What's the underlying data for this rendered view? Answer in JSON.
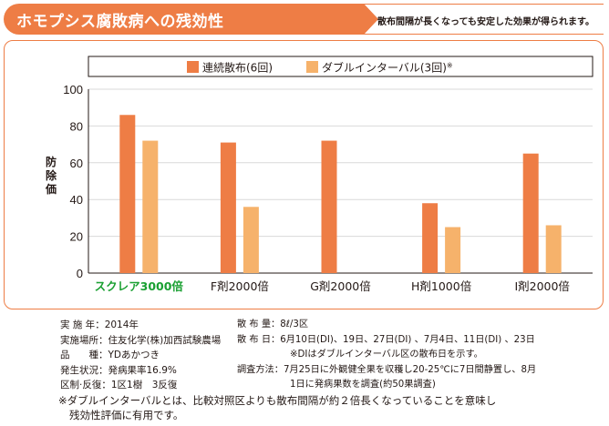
{
  "header": {
    "title": "ホモプシス腐敗病への残効性",
    "subtitle": "散布間隔が長くなっても安定した効果が得られます。"
  },
  "chart_data": {
    "type": "bar",
    "ylabel": "防除価",
    "ylim": [
      0,
      100
    ],
    "yticks": [
      0,
      20,
      40,
      60,
      80,
      100
    ],
    "categories": [
      "スクレア3000倍",
      "F剤2000倍",
      "G剤2000倍",
      "H剤1000倍",
      "I剤2000倍"
    ],
    "series": [
      {
        "name": "連続散布(6回)",
        "color": "#ee7d45",
        "values": [
          86,
          71,
          72,
          38,
          65
        ]
      },
      {
        "name": "ダブルインターバル(3回)",
        "note_mark": "※",
        "color": "#f6b26b",
        "values": [
          72,
          36,
          null,
          25,
          26
        ]
      }
    ],
    "grid": true,
    "legend": "top",
    "highlight_category_color": "#1aa032"
  },
  "info_left": [
    {
      "label": "実 施 年",
      "value": "2014年"
    },
    {
      "label": "実施場所",
      "value": "住友化学(株)加西試験農場"
    },
    {
      "label": "品　　種",
      "value": "YDあかつき"
    },
    {
      "label": "発生状況",
      "value": "発病果率16.9%"
    },
    {
      "label": "区制·反復",
      "value": "1区1樹　3反復"
    }
  ],
  "info_right": [
    {
      "label": "散 布 量",
      "value": "8ℓ/3区"
    },
    {
      "label": "散 布 日",
      "value": "6月10日(DI)、19日、27日(DI) 、7月4日、11日(DI) 、23日"
    },
    {
      "label": "",
      "value": "※DIはダブルインターバル区の散布日を示す。"
    },
    {
      "label": "調査方法",
      "value": "7月25日に外観健全果を収穫し20-25℃に7日間静置し、8月"
    },
    {
      "label": "",
      "value": "1日に発病果数を調査(約50果調査)"
    }
  ],
  "footnote": {
    "line1": "※ダブルインターバルとは、比較対照区よりも散布間隔が約２倍長くなっていることを意味し",
    "line2": "残効性評価に有用です。"
  }
}
